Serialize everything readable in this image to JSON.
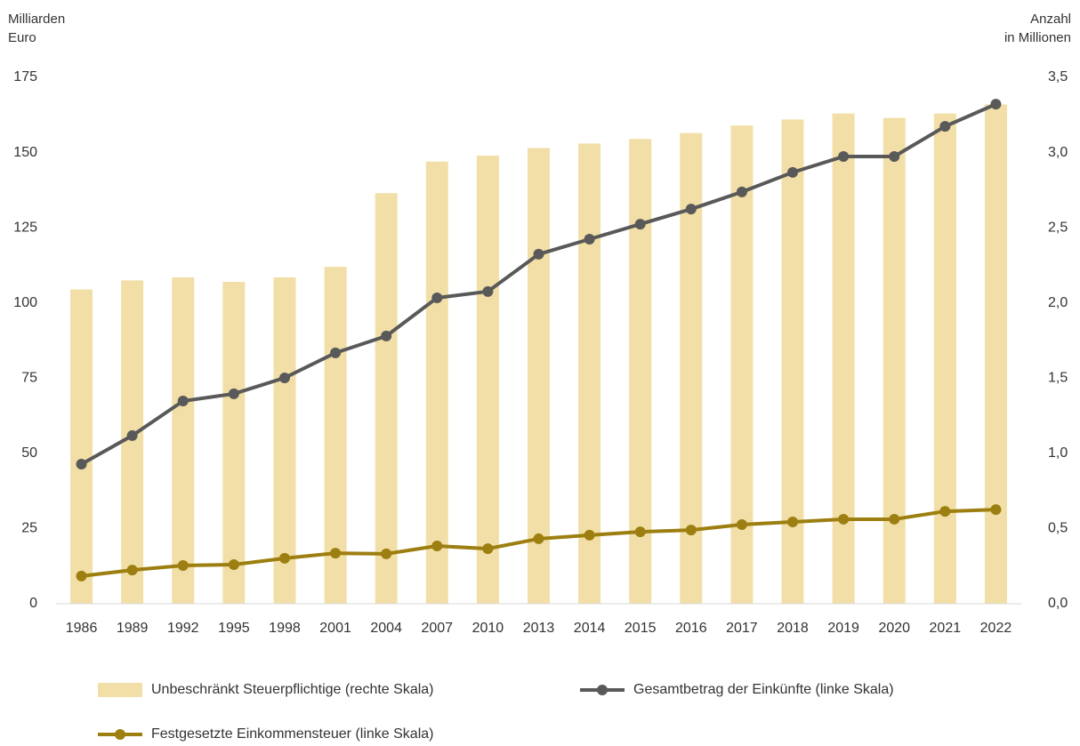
{
  "chart_data": {
    "type": "bar",
    "y_label": [
      "Milliarden",
      "Euro"
    ],
    "y2_label": [
      "Anzahl",
      "in Millionen"
    ],
    "categories": [
      "1986",
      "1989",
      "1992",
      "1995",
      "1998",
      "2001",
      "2004",
      "2007",
      "2010",
      "2013",
      "2014",
      "2015",
      "2016",
      "2017",
      "2018",
      "2019",
      "2020",
      "2021",
      "2022"
    ],
    "ylim": [
      0,
      175
    ],
    "yticks": [
      0,
      25,
      50,
      75,
      100,
      125,
      150,
      175
    ],
    "y2lim": [
      0,
      3.5
    ],
    "y2ticks": [
      {
        "value": 0,
        "label": "0,0"
      },
      {
        "value": 0.5,
        "label": "0,5"
      },
      {
        "value": 1,
        "label": "1,0"
      },
      {
        "value": 1.5,
        "label": "1,5"
      },
      {
        "value": 2,
        "label": "2,0"
      },
      {
        "value": 2.5,
        "label": "2,5"
      },
      {
        "value": 3,
        "label": "3,0"
      },
      {
        "value": 3.5,
        "label": "3,5"
      }
    ],
    "grid": false,
    "series": [
      {
        "name": "Unbeschränkt Steuerpflichtige (rechte Skala)",
        "type": "bar",
        "axis": "y2",
        "color": "#f2dfa7",
        "values": [
          2.09,
          2.15,
          2.17,
          2.14,
          2.17,
          2.24,
          2.73,
          2.94,
          2.98,
          3.03,
          3.06,
          3.09,
          3.13,
          3.18,
          3.22,
          3.26,
          3.23,
          3.26,
          3.32
        ]
      },
      {
        "name": "Gesamtbetrag der Einkünfte (linke Skala)",
        "type": "line",
        "color": "#595959",
        "values": [
          46.4,
          55.9,
          67.4,
          69.8,
          75.1,
          83.4,
          89.0,
          101.7,
          103.8,
          116.2,
          121.2,
          126.2,
          131.2,
          136.9,
          143.4,
          148.7,
          148.7,
          158.7,
          166.1
        ]
      },
      {
        "name": "Festgesetzte Einkommensteuer (linke Skala)",
        "type": "line",
        "color": "#9c7f10",
        "values": [
          9.2,
          11.2,
          12.7,
          13.0,
          15.1,
          16.8,
          16.6,
          19.2,
          18.3,
          21.6,
          22.8,
          23.9,
          24.5,
          26.3,
          27.2,
          28.1,
          28.1,
          30.7,
          31.3
        ]
      }
    ]
  }
}
